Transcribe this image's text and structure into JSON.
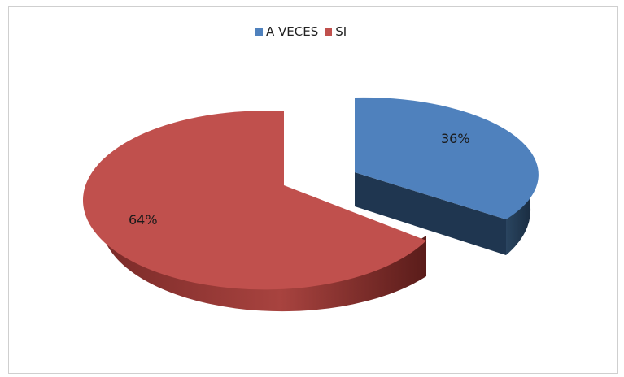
{
  "chart_data": {
    "type": "pie",
    "title": "",
    "categories": [
      "A VECES",
      "SI"
    ],
    "values": [
      36,
      64
    ],
    "labels": [
      "36%",
      "64%"
    ],
    "colors": [
      "#4f81bd",
      "#c0504d"
    ],
    "legend_position": "top",
    "style": "3d-exploded"
  }
}
